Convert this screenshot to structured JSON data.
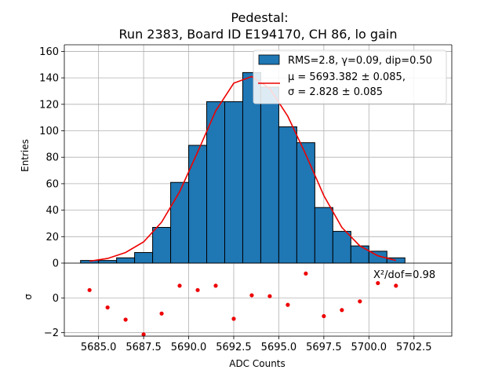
{
  "chart_data": [
    {
      "type": "bar",
      "title": "Pedestal:",
      "subtitle": "Run 2383, Board ID E194170, CH 86, lo gain",
      "ylabel": "Entries",
      "xlim": [
        5683.1,
        5704.6
      ],
      "ylim": [
        0,
        165
      ],
      "yticks": [
        0,
        20,
        40,
        60,
        80,
        100,
        120,
        140,
        160
      ],
      "grid": true,
      "legend_position": "top-right",
      "histogram": {
        "name": "RMS=2.8, γ=0.09, dip=0.50",
        "color": "#1f77b4",
        "edges": [
          5684,
          5685,
          5686,
          5687,
          5688,
          5689,
          5690,
          5691,
          5692,
          5693,
          5694,
          5695,
          5696,
          5697,
          5698,
          5699,
          5700,
          5701,
          5702
        ],
        "counts": [
          2,
          2,
          4,
          8,
          27,
          61,
          89,
          122,
          122,
          144,
          133,
          103,
          91,
          42,
          24,
          13,
          9,
          4
        ]
      },
      "fit": {
        "name_line1": "μ = 5693.382 ± 0.085,",
        "name_line2": "σ = 2.828 ± 0.085",
        "color": "#ee0000",
        "x": [
          5684.5,
          5685.5,
          5686.5,
          5687.5,
          5688.5,
          5689.5,
          5690.5,
          5691.5,
          5692.5,
          5693.5,
          5694.5,
          5695.5,
          5696.5,
          5697.5,
          5698.5,
          5699.5,
          5700.5,
          5701.5
        ],
        "y": [
          1.5,
          3.5,
          8,
          16,
          31,
          54,
          84,
          115,
          136,
          141,
          132,
          111,
          82,
          51,
          27,
          13,
          5.5,
          2
        ]
      }
    },
    {
      "type": "scatter",
      "xlabel": "ADC Counts",
      "ylabel": "σ",
      "xlim": [
        5683.1,
        5704.6
      ],
      "ylim": [
        -2.2,
        2.0
      ],
      "xticks": [
        5685.0,
        5687.5,
        5690.0,
        5692.5,
        5695.0,
        5697.5,
        5700.0,
        5702.5
      ],
      "xtick_labels": [
        "5685.0",
        "5687.5",
        "5690.0",
        "5692.5",
        "5695.0",
        "5697.5",
        "5700.0",
        "5702.5"
      ],
      "yticks": [
        -2,
        0
      ],
      "grid": true,
      "annotation": "X²/dof=0.98",
      "color": "#ee0000",
      "x": [
        5684.5,
        5685.5,
        5686.5,
        5687.5,
        5688.5,
        5689.5,
        5690.5,
        5691.5,
        5692.5,
        5693.5,
        5694.5,
        5695.5,
        5696.5,
        5697.5,
        5698.5,
        5699.5,
        5700.5,
        5701.5
      ],
      "y": [
        0.45,
        -0.55,
        -1.25,
        -2.1,
        -0.9,
        0.7,
        0.45,
        0.7,
        -1.2,
        0.15,
        0.1,
        -0.4,
        1.4,
        -1.05,
        -0.7,
        -0.2,
        0.85,
        0.7
      ]
    }
  ]
}
